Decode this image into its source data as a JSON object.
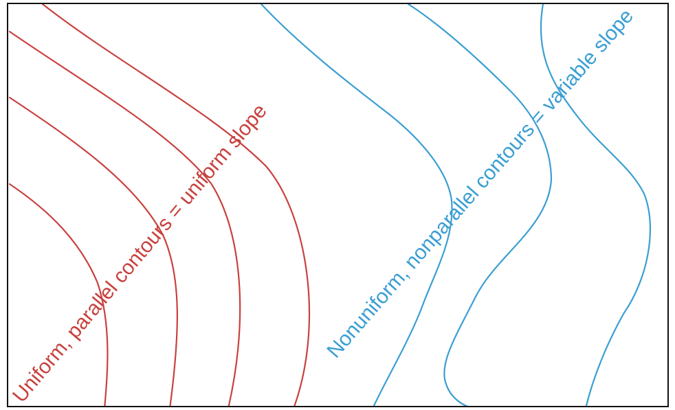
{
  "labels": {
    "uniform": "Uniform, parallel contours = uniform slope",
    "nonuniform": "Nonuniform, nonparallel contours = variable slope"
  },
  "colors": {
    "uniform": "#c8413e",
    "nonuniform": "#3a9ed2",
    "frame": "#111111",
    "background": "#ffffff"
  }
}
